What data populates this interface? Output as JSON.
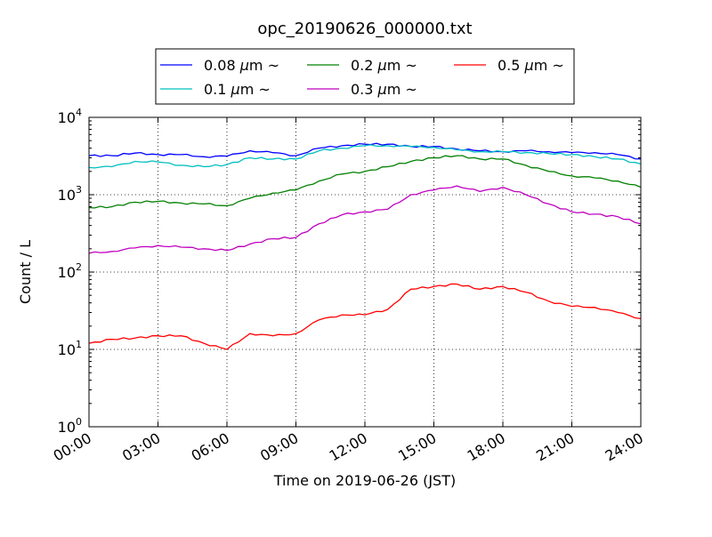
{
  "chart_data": {
    "type": "line",
    "title": "opc_20190626_000000.txt",
    "xlabel": "Time on 2019-06-26 (JST)",
    "ylabel": "Count / L",
    "yscale": "log",
    "ylim": [
      1,
      10000
    ],
    "xlim": [
      "2019-06-26 00:00",
      "2019-06-27 00:00"
    ],
    "x_tick_labels": [
      "00:00",
      "03:00",
      "06:00",
      "09:00",
      "12:00",
      "15:00",
      "18:00",
      "21:00",
      "24:00"
    ],
    "y_ticks": [
      {
        "base": "10",
        "exp": "0",
        "value": 1
      },
      {
        "base": "10",
        "exp": "1",
        "value": 10
      },
      {
        "base": "10",
        "exp": "2",
        "value": 100
      },
      {
        "base": "10",
        "exp": "3",
        "value": 1000
      },
      {
        "base": "10",
        "exp": "4",
        "value": 10000
      }
    ],
    "grid": true,
    "legend_position": "top-center",
    "x_times": [
      "00:00",
      "01:00",
      "02:00",
      "03:00",
      "04:00",
      "05:00",
      "06:00",
      "07:00",
      "08:00",
      "09:00",
      "10:00",
      "11:00",
      "12:00",
      "13:00",
      "14:00",
      "15:00",
      "16:00",
      "17:00",
      "18:00",
      "19:00",
      "20:00",
      "21:00",
      "22:00",
      "23:00",
      "24:00"
    ],
    "series": [
      {
        "label": "0.08",
        "unit": "μm",
        "suffix": "~",
        "color": "#0000ff",
        "values": [
          3200,
          3200,
          3450,
          3300,
          3300,
          3100,
          3150,
          3700,
          3500,
          3200,
          4000,
          4300,
          4500,
          4500,
          4200,
          4200,
          3900,
          3700,
          3600,
          3700,
          3600,
          3500,
          3500,
          3300,
          2900
        ]
      },
      {
        "label": "0.1",
        "unit": "μm",
        "suffix": "~",
        "color": "#00bfbf",
        "values": [
          2250,
          2300,
          2700,
          2650,
          2400,
          2300,
          2450,
          3000,
          2900,
          2900,
          3700,
          4000,
          4300,
          4300,
          4200,
          4100,
          3800,
          3600,
          3600,
          3500,
          3400,
          3300,
          3100,
          2900,
          2500
        ]
      },
      {
        "label": "0.2",
        "unit": "μm",
        "suffix": "~",
        "color": "#008000",
        "values": [
          680,
          700,
          800,
          820,
          780,
          760,
          720,
          900,
          1050,
          1150,
          1500,
          1850,
          2000,
          2300,
          2700,
          3000,
          3200,
          2900,
          2900,
          2400,
          2000,
          1750,
          1650,
          1500,
          1250
        ]
      },
      {
        "label": "0.3",
        "unit": "μm",
        "suffix": "~",
        "color": "#bf00bf",
        "values": [
          175,
          185,
          205,
          220,
          210,
          200,
          190,
          230,
          270,
          280,
          420,
          550,
          600,
          650,
          1000,
          1150,
          1300,
          1100,
          1250,
          1000,
          760,
          600,
          560,
          520,
          420
        ]
      },
      {
        "label": "0.5",
        "unit": "μm",
        "suffix": "~",
        "color": "#ff0000",
        "values": [
          12,
          13.5,
          14,
          15,
          15,
          12,
          10,
          16,
          15,
          16,
          24,
          28,
          28,
          33,
          60,
          65,
          70,
          60,
          65,
          55,
          42,
          36,
          35,
          30,
          25
        ]
      }
    ]
  }
}
